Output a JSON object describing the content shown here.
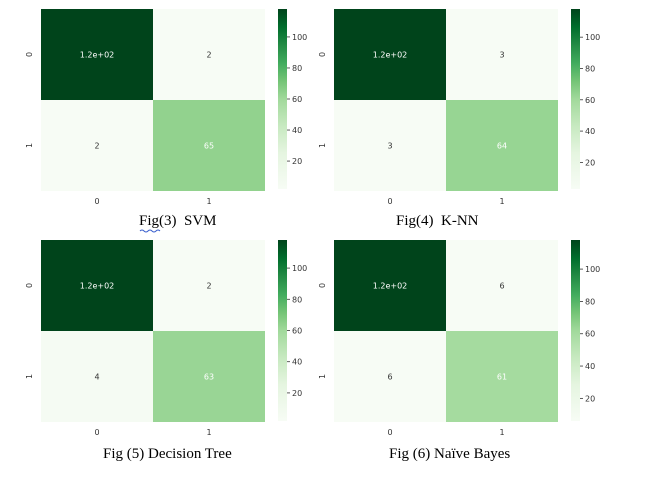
{
  "colors": {
    "low": "#f7fcf5",
    "mid": "#74c476",
    "high": "#00441b",
    "text_light": "#ffffff",
    "text_dark": "#333333"
  },
  "chart_data": [
    {
      "type": "heatmap",
      "caption": "Fig(3)  SVM",
      "rows": [
        "0",
        "1"
      ],
      "cols": [
        "0",
        "1"
      ],
      "values": [
        [
          120,
          2
        ],
        [
          2,
          65
        ]
      ],
      "annotations": [
        [
          "1.2e+02",
          "2"
        ],
        [
          "2",
          "65"
        ]
      ],
      "colorbar": {
        "range": [
          2,
          120
        ],
        "ticks": [
          20,
          40,
          60,
          80,
          100
        ]
      }
    },
    {
      "type": "heatmap",
      "caption": "Fig(4)  K-NN",
      "rows": [
        "0",
        "1"
      ],
      "cols": [
        "0",
        "1"
      ],
      "values": [
        [
          120,
          3
        ],
        [
          3,
          64
        ]
      ],
      "annotations": [
        [
          "1.2e+02",
          "3"
        ],
        [
          "3",
          "64"
        ]
      ],
      "colorbar": {
        "range": [
          3,
          120
        ],
        "ticks": [
          20,
          40,
          60,
          80,
          100
        ]
      }
    },
    {
      "type": "heatmap",
      "caption": "Fig (5) Decision Tree",
      "rows": [
        "0",
        "1"
      ],
      "cols": [
        "0",
        "1"
      ],
      "values": [
        [
          120,
          2
        ],
        [
          4,
          63
        ]
      ],
      "annotations": [
        [
          "1.2e+02",
          "2"
        ],
        [
          "4",
          "63"
        ]
      ],
      "colorbar": {
        "range": [
          2,
          120
        ],
        "ticks": [
          20,
          40,
          60,
          80,
          100
        ]
      }
    },
    {
      "type": "heatmap",
      "caption": "Fig (6) Naïve Bayes",
      "rows": [
        "0",
        "1"
      ],
      "cols": [
        "0",
        "1"
      ],
      "values": [
        [
          120,
          6
        ],
        [
          6,
          61
        ]
      ],
      "annotations": [
        [
          "1.2e+02",
          "6"
        ],
        [
          "6",
          "61"
        ]
      ],
      "colorbar": {
        "range": [
          6,
          120
        ],
        "ticks": [
          20,
          40,
          60,
          80,
          100
        ]
      }
    }
  ]
}
